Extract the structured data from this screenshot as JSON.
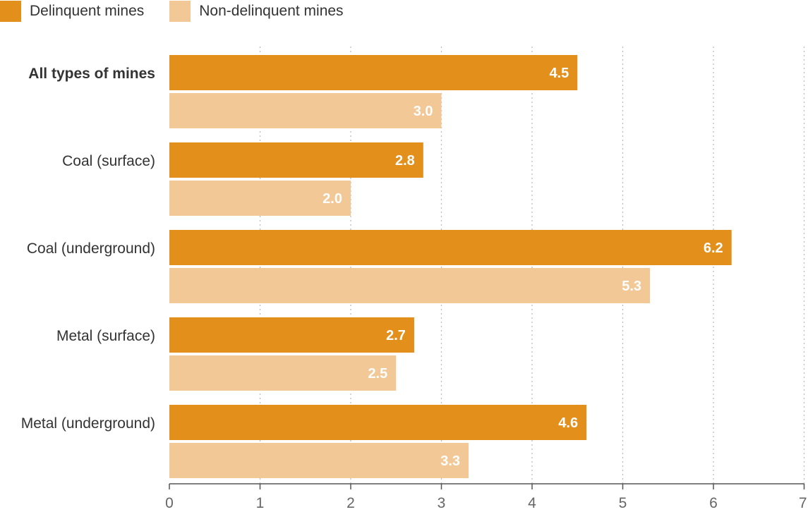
{
  "legend": {
    "items": [
      {
        "label": "Delinquent mines",
        "color": "#e38f1b"
      },
      {
        "label": "Non-delinquent mines",
        "color": "#f2c896"
      }
    ]
  },
  "chart_data": {
    "type": "bar",
    "orientation": "horizontal",
    "categories": [
      "All types of mines",
      "Coal (surface)",
      "Coal (underground)",
      "Metal (surface)",
      "Metal (underground)"
    ],
    "bold_categories": [
      "All types of mines"
    ],
    "series": [
      {
        "name": "Delinquent mines",
        "values": [
          4.5,
          2.8,
          6.2,
          2.7,
          4.6
        ],
        "labels": [
          "4.5",
          "2.8",
          "6.2",
          "2.7",
          "4.6"
        ],
        "color": "#e38f1b"
      },
      {
        "name": "Non-delinquent mines",
        "values": [
          3.0,
          2.0,
          5.3,
          2.5,
          3.3
        ],
        "labels": [
          "3.0",
          "2.0",
          "5.3",
          "2.5",
          "3.3"
        ],
        "color": "#f2c896"
      }
    ],
    "xlim": [
      0,
      7
    ],
    "xticks": [
      "0",
      "1",
      "2",
      "3",
      "4",
      "5",
      "6",
      "7"
    ],
    "grid": true,
    "legend_position": "top-left",
    "title": "",
    "xlabel": "",
    "ylabel": ""
  }
}
